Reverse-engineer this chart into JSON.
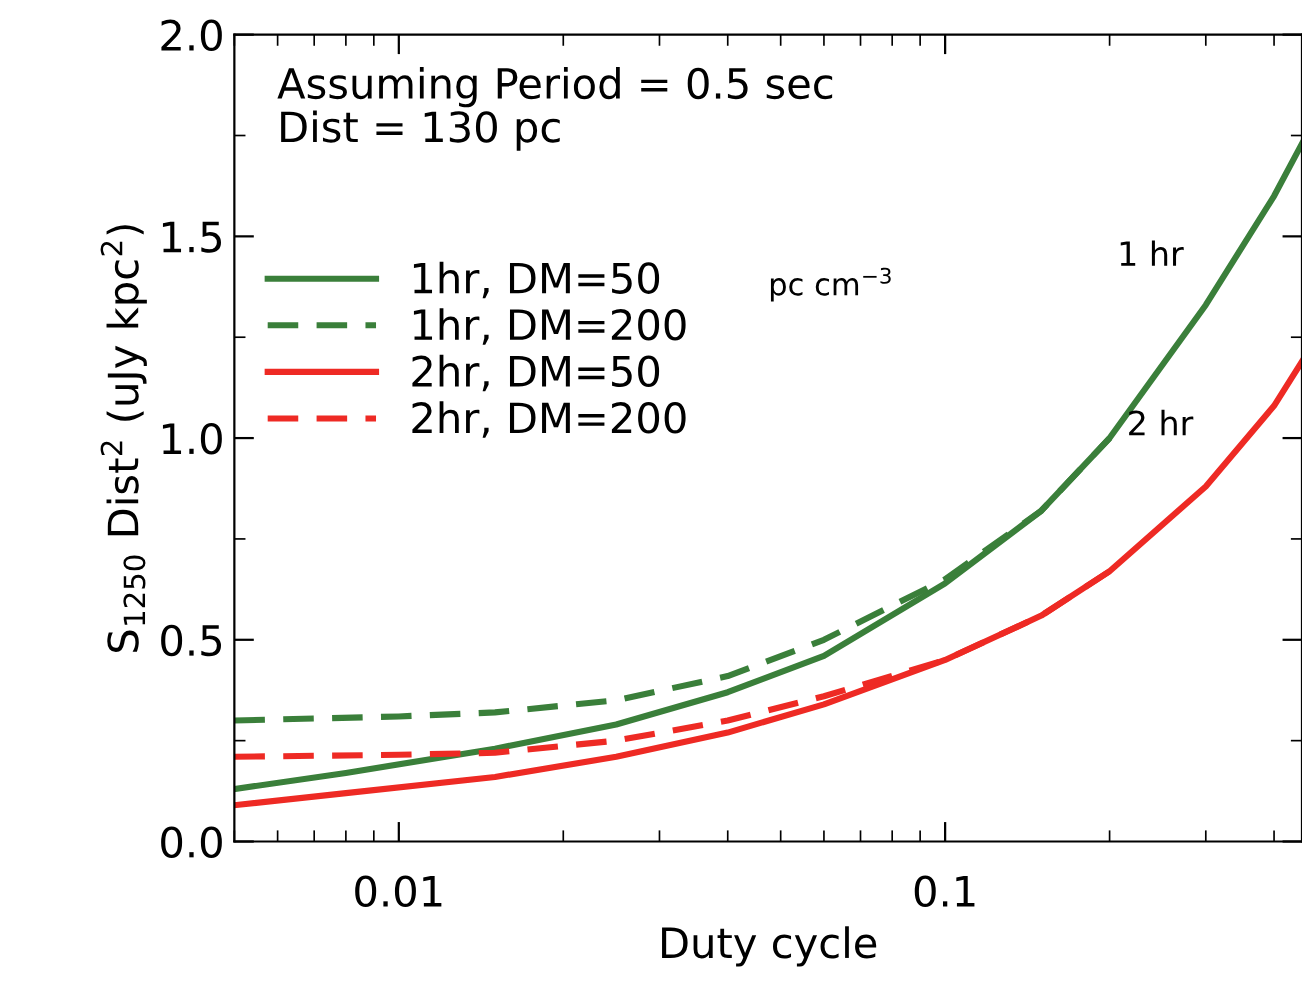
{
  "chart_data": {
    "type": "line",
    "xlabel": "Duty cycle",
    "ylabel": "S$_{1250}$ Dist$^{2}$ (uJy kpc$^{2}$)",
    "log": "x",
    "xlim": [
      0.005,
      0.45
    ],
    "xticks": [
      0.01,
      0.1
    ],
    "ylim": [
      0,
      2.0
    ],
    "yticks": [
      {
        "value": 0,
        "label": "0.0"
      },
      0.5,
      {
        "value": 1,
        "label": "1.0"
      },
      1.5,
      {
        "value": 2,
        "label": "2.0"
      }
    ],
    "grid": false,
    "legend": "top left",
    "marker": "none",
    "series": [
      {
        "name": "1hr, DM=50",
        "color": "#3a7f3a",
        "line_style": "solid",
        "x": [
          0.005,
          0.008,
          0.015,
          0.025,
          0.04,
          0.06,
          0.1,
          0.15,
          0.2,
          0.3,
          0.4,
          0.45
        ],
        "values": [
          0.13,
          0.17,
          0.23,
          0.29,
          0.37,
          0.46,
          0.64,
          0.82,
          1.0,
          1.33,
          1.6,
          1.73
        ]
      },
      {
        "name": "1hr, DM=200",
        "color": "#3a7f3a",
        "line_style": "dashed",
        "x": [
          0.005,
          0.01,
          0.015,
          0.025,
          0.04,
          0.06,
          0.1,
          0.15,
          0.2
        ],
        "values": [
          0.3,
          0.31,
          0.32,
          0.35,
          0.41,
          0.5,
          0.65,
          0.82,
          1.0
        ]
      },
      {
        "name": "2hr, DM=50",
        "color": "#ee2a24",
        "line_style": "solid",
        "x": [
          0.005,
          0.008,
          0.015,
          0.025,
          0.04,
          0.06,
          0.1,
          0.15,
          0.2,
          0.3,
          0.4,
          0.45
        ],
        "values": [
          0.09,
          0.12,
          0.16,
          0.21,
          0.27,
          0.34,
          0.45,
          0.56,
          0.67,
          0.88,
          1.08,
          1.19
        ]
      },
      {
        "name": "2hr, DM=200",
        "color": "#ee2a24",
        "line_style": "dashed",
        "x": [
          0.005,
          0.01,
          0.015,
          0.025,
          0.04,
          0.06,
          0.1,
          0.15,
          0.2
        ],
        "values": [
          0.21,
          0.215,
          0.22,
          0.25,
          0.3,
          0.36,
          0.45,
          0.56,
          0.67
        ]
      }
    ],
    "annotations": [
      "Assuming Period = 0.5 sec\nDist = 130 pc",
      "pc cm$^{−3}$",
      "1 hr",
      "2 hr"
    ]
  }
}
